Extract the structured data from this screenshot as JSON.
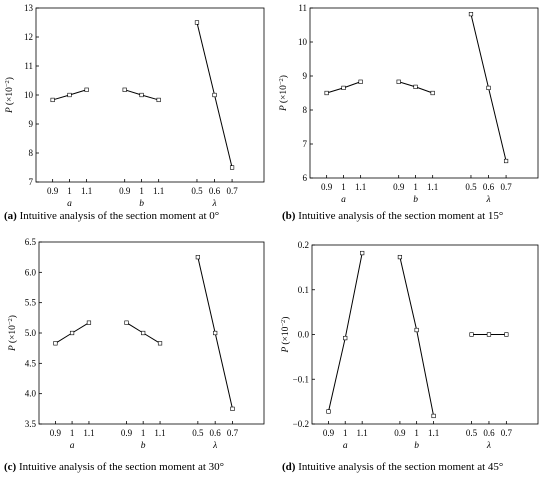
{
  "chart_data": [
    {
      "type": "line",
      "caption_prefix": "(a)",
      "caption_text": " Intuitive analysis of the section moment at  0°",
      "ylabel_main": "P",
      "ylabel_unit": "(×10",
      "ylabel_exp": "−2",
      "ylabel_close": ")",
      "ylim": [
        7,
        13
      ],
      "yticks": [
        "7",
        "8",
        "9",
        "10",
        "11",
        "12",
        "13"
      ],
      "groups": [
        {
          "name": "a",
          "x": [
            "0.9",
            "1",
            "1.1"
          ],
          "values": [
            9.83,
            10.0,
            10.18
          ]
        },
        {
          "name": "b",
          "x": [
            "0.9",
            "1",
            "1.1"
          ],
          "values": [
            10.18,
            10.0,
            9.83
          ]
        },
        {
          "name": "λ",
          "x": [
            "0.5",
            "0.6",
            "0.7"
          ],
          "values": [
            12.5,
            10.0,
            7.5
          ]
        }
      ]
    },
    {
      "type": "line",
      "caption_prefix": "(b)",
      "caption_text": " Intuitive analysis of the section moment at  15°",
      "ylabel_main": "P",
      "ylabel_unit": "(×10",
      "ylabel_exp": "−2",
      "ylabel_close": ")",
      "ylim": [
        6,
        11
      ],
      "yticks": [
        "6",
        "7",
        "8",
        "9",
        "10",
        "11"
      ],
      "groups": [
        {
          "name": "a",
          "x": [
            "0.9",
            "1",
            "1.1"
          ],
          "values": [
            8.5,
            8.65,
            8.83
          ]
        },
        {
          "name": "b",
          "x": [
            "0.9",
            "1",
            "1.1"
          ],
          "values": [
            8.83,
            8.68,
            8.5
          ]
        },
        {
          "name": "λ",
          "x": [
            "0.5",
            "0.6",
            "0.7"
          ],
          "values": [
            10.82,
            8.65,
            6.5
          ]
        }
      ]
    },
    {
      "type": "line",
      "caption_prefix": "(c)",
      "caption_text": " Intuitive analysis of the section moment at  30°",
      "ylabel_main": "P",
      "ylabel_unit": "(×10",
      "ylabel_exp": "−2",
      "ylabel_close": ")",
      "ylim": [
        3.5,
        6.5
      ],
      "yticks": [
        "3.5",
        "4.0",
        "4.5",
        "5.0",
        "5.5",
        "6.0",
        "6.5"
      ],
      "groups": [
        {
          "name": "a",
          "x": [
            "0.9",
            "1",
            "1.1"
          ],
          "values": [
            4.83,
            5.0,
            5.17
          ]
        },
        {
          "name": "b",
          "x": [
            "0.9",
            "1",
            "1.1"
          ],
          "values": [
            5.17,
            5.0,
            4.83
          ]
        },
        {
          "name": "λ",
          "x": [
            "0.5",
            "0.6",
            "0.7"
          ],
          "values": [
            6.25,
            5.0,
            3.75
          ]
        }
      ]
    },
    {
      "type": "line",
      "caption_prefix": "(d)",
      "caption_text": " Intuitive analysis of the section moment at  45°",
      "ylabel_main": "P",
      "ylabel_unit": "(×10",
      "ylabel_exp": "−2",
      "ylabel_close": ")",
      "ylim": [
        -0.2,
        0.2
      ],
      "yticks": [
        "−0.2",
        "−0.1",
        "0.0",
        "0.1",
        "0.2"
      ],
      "groups": [
        {
          "name": "a",
          "x": [
            "0.9",
            "1",
            "1.1"
          ],
          "values": [
            -0.172,
            -0.008,
            0.182
          ]
        },
        {
          "name": "b",
          "x": [
            "0.9",
            "1",
            "1.1"
          ],
          "values": [
            0.173,
            0.01,
            -0.182
          ]
        },
        {
          "name": "λ",
          "x": [
            "0.5",
            "0.6",
            "0.7"
          ],
          "values": [
            0.0,
            0.0,
            0.0
          ]
        }
      ]
    }
  ]
}
